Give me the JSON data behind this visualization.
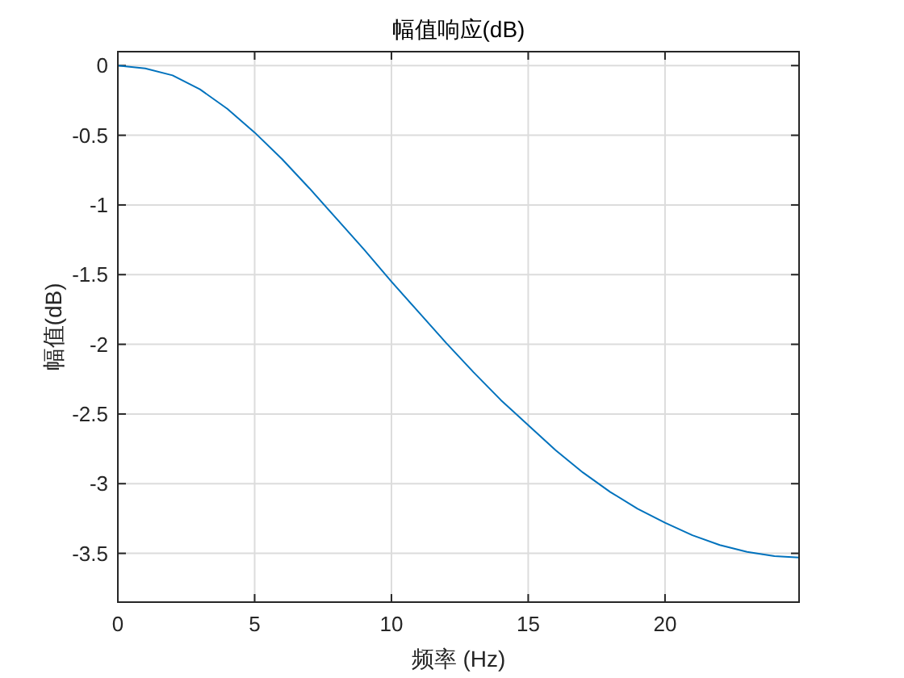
{
  "chart_data": {
    "type": "line",
    "title": "幅值响应(dB)",
    "xlabel": "频率 (Hz)",
    "ylabel": "幅值(dB)",
    "xlim": [
      0,
      24.9
    ],
    "ylim": [
      -3.85,
      0.1
    ],
    "xticks": [
      0,
      5,
      10,
      15,
      20
    ],
    "yticks": [
      0,
      -0.5,
      -1,
      -1.5,
      -2,
      -2.5,
      -3,
      -3.5
    ],
    "grid": true,
    "series": [
      {
        "color": "#0072bd",
        "x": [
          0,
          1,
          2,
          3,
          4,
          5,
          6,
          7,
          8,
          9,
          10,
          11,
          12,
          13,
          14,
          15,
          16,
          17,
          18,
          19,
          20,
          21,
          22,
          23,
          24,
          24.9
        ],
        "values": [
          0,
          -0.02,
          -0.07,
          -0.17,
          -0.31,
          -0.48,
          -0.67,
          -0.88,
          -1.1,
          -1.32,
          -1.55,
          -1.77,
          -1.99,
          -2.2,
          -2.4,
          -2.58,
          -2.76,
          -2.92,
          -3.06,
          -3.18,
          -3.28,
          -3.37,
          -3.44,
          -3.49,
          -3.52,
          -3.53
        ]
      }
    ]
  }
}
